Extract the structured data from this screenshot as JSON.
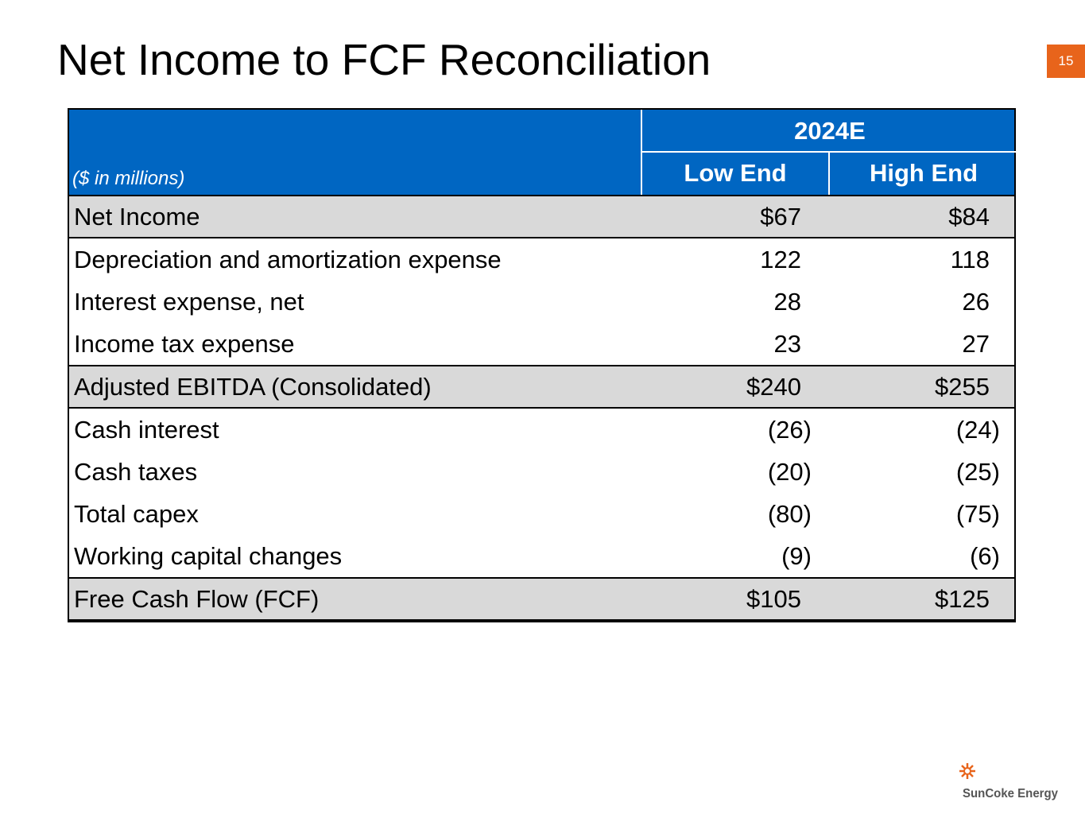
{
  "header": {
    "title": "Net Income to FCF Reconciliation",
    "page_number": "15"
  },
  "table": {
    "unit_label": "($ in millions)",
    "period": "2024E",
    "columns": [
      "Low End",
      "High End"
    ],
    "rows": [
      {
        "label": "Net Income",
        "values": [
          "$67",
          "$84"
        ],
        "shaded": true
      },
      {
        "label": "Depreciation and amortization expense",
        "values": [
          "122",
          "118"
        ]
      },
      {
        "label": "Interest expense, net",
        "values": [
          "28",
          "26"
        ]
      },
      {
        "label": "Income tax expense",
        "values": [
          "23",
          "27"
        ]
      },
      {
        "label": "Adjusted EBITDA (Consolidated)",
        "values": [
          "$240",
          "$255"
        ],
        "shaded": true
      },
      {
        "label": "Cash interest",
        "values": [
          "(26)",
          "(24)"
        ]
      },
      {
        "label": "Cash taxes",
        "values": [
          "(20)",
          "(25)"
        ]
      },
      {
        "label": "Total capex",
        "values": [
          "(80)",
          "(75)"
        ]
      },
      {
        "label": "Working capital changes",
        "values": [
          "(9)",
          "(6)"
        ]
      },
      {
        "label": "Free Cash Flow (FCF)",
        "values": [
          "$105",
          "$125"
        ],
        "shaded": true
      }
    ]
  },
  "footer": {
    "logo": "SunCoke Energy"
  }
}
